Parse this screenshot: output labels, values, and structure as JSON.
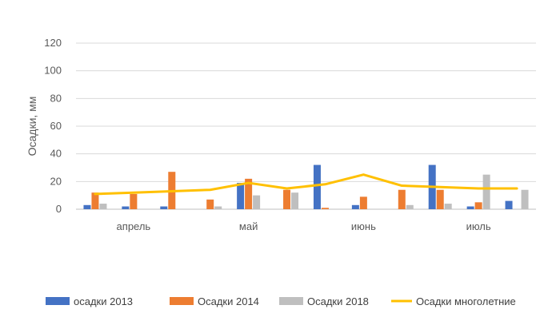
{
  "chart_data": {
    "type": "bar",
    "title": "",
    "xlabel": "",
    "ylabel": "Осадки, мм",
    "ylim": [
      0,
      120
    ],
    "yticks": [
      0,
      20,
      40,
      60,
      80,
      100,
      120
    ],
    "grid": true,
    "legend_position": "bottom",
    "months": [
      "апрель",
      "май",
      "июнь",
      "июль"
    ],
    "decades_per_month": 3,
    "series": [
      {
        "name": "осадки 2013",
        "kind": "bar",
        "color": "#4472C4",
        "values": [
          3,
          2,
          2,
          0,
          19,
          0,
          32,
          3,
          0,
          32,
          2,
          6
        ]
      },
      {
        "name": "Осадки 2014",
        "kind": "bar",
        "color": "#ED7D31",
        "values": [
          12,
          11,
          27,
          7,
          22,
          14,
          1,
          9,
          14,
          14,
          5,
          0
        ]
      },
      {
        "name": "Осадки 2018",
        "kind": "bar",
        "color": "#BFBFBF",
        "values": [
          4,
          0,
          0,
          2,
          10,
          12,
          0,
          0,
          3,
          4,
          25,
          14
        ]
      },
      {
        "name": "Осадки многолетние",
        "kind": "line",
        "color": "#FFC000",
        "values": [
          11,
          12,
          13,
          14,
          19,
          15,
          18,
          25,
          17,
          16,
          15,
          15
        ]
      }
    ]
  }
}
